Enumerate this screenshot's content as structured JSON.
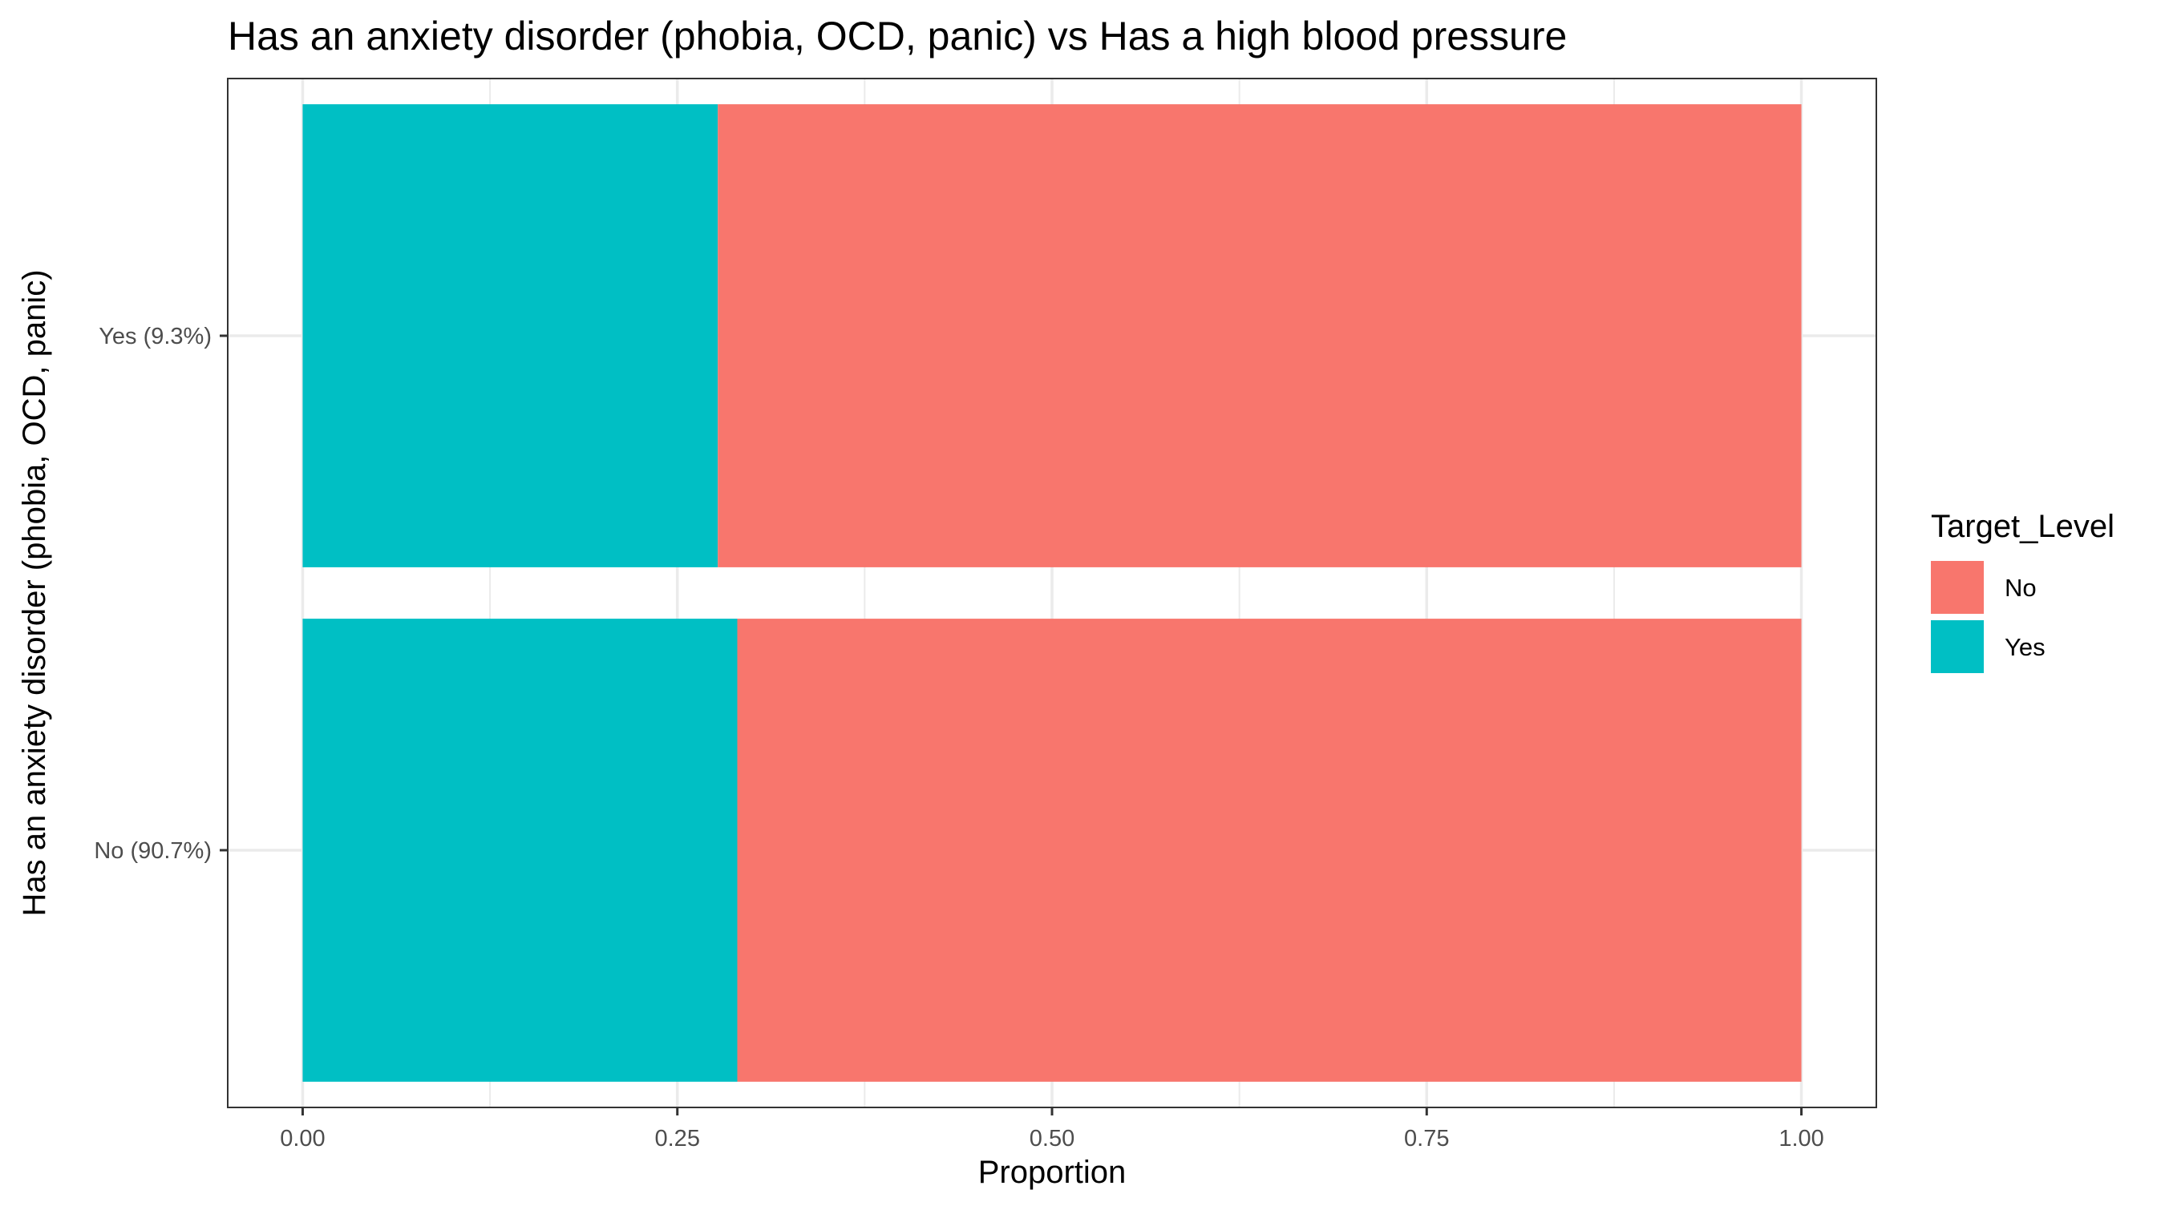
{
  "chart_data": {
    "type": "bar",
    "orientation": "horizontal",
    "stacked": true,
    "title": "Has an anxiety disorder (phobia, OCD, panic) vs Has a high blood pressure",
    "xlabel": "Proportion",
    "ylabel": "Has an anxiety disorder (phobia, OCD, panic)",
    "categories": [
      "No (90.7%)",
      "Yes (9.3%)"
    ],
    "series": [
      {
        "name": "Yes",
        "values": [
          0.29,
          0.277
        ],
        "color": "#00BFC4"
      },
      {
        "name": "No",
        "values": [
          0.71,
          0.723
        ],
        "color": "#F8766D"
      }
    ],
    "xlim": [
      -0.05,
      1.05
    ],
    "xticks": [
      0,
      0.25,
      0.5,
      0.75,
      1
    ],
    "xtick_labels": [
      "0.00",
      "0.25",
      "0.50",
      "0.75",
      "1.00"
    ],
    "grid": true,
    "legend": {
      "title": "Target_Level",
      "placement": "right",
      "entries": [
        {
          "label": "No",
          "color": "#F8766D"
        },
        {
          "label": "Yes",
          "color": "#00BFC4"
        }
      ]
    }
  }
}
